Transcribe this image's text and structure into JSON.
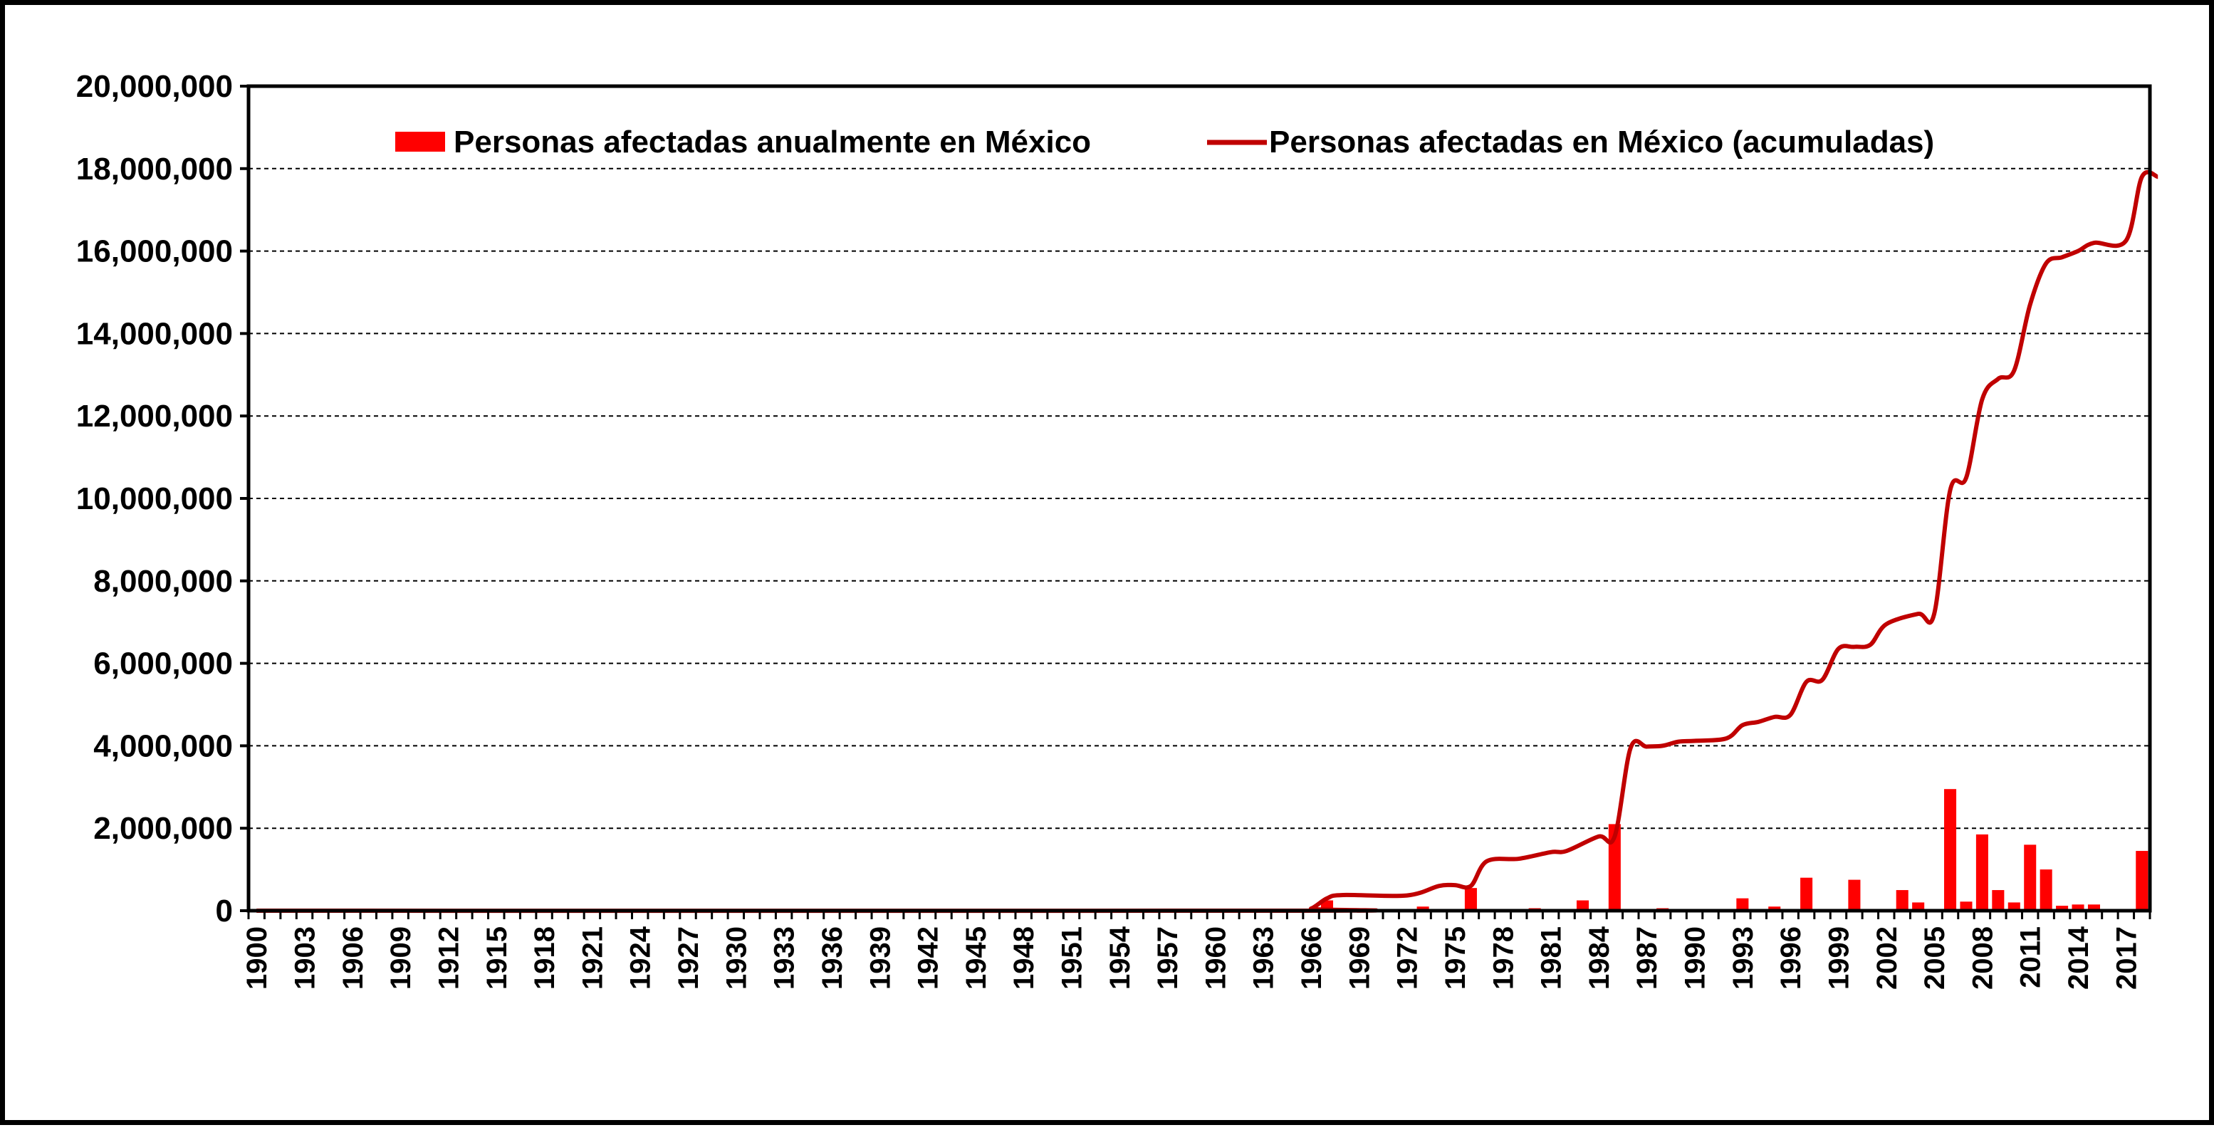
{
  "colors": {
    "bar": "#ff0000",
    "line": "#c00000",
    "grid": "#000000",
    "axis": "#000000"
  },
  "chart_data": {
    "type": "bar",
    "title": "",
    "xlabel": "",
    "ylabel": "",
    "x_start": 1900,
    "x_end": 2018,
    "x_tick_labels": [
      "1900",
      "1903",
      "1906",
      "1909",
      "1912",
      "1915",
      "1918",
      "1921",
      "1924",
      "1927",
      "1930",
      "1933",
      "1936",
      "1939",
      "1942",
      "1945",
      "1948",
      "1951",
      "1954",
      "1957",
      "1960",
      "1963",
      "1966",
      "1969",
      "1972",
      "1975",
      "1978",
      "1981",
      "1984",
      "1987",
      "1990",
      "1993",
      "1996",
      "1999",
      "2002",
      "2005",
      "2008",
      "2011",
      "2014",
      "2017"
    ],
    "ylim": [
      0,
      20000000
    ],
    "y_tick_labels": [
      "0",
      "2,000,000",
      "4,000,000",
      "6,000,000",
      "8,000,000",
      "10,000,000",
      "12,000,000",
      "14,000,000",
      "16,000,000",
      "18,000,000",
      "20,000,000"
    ],
    "y_ticks": [
      0,
      2000000,
      4000000,
      6000000,
      8000000,
      10000000,
      12000000,
      14000000,
      16000000,
      18000000,
      20000000
    ],
    "grid": "horizontal dashed",
    "legend_position": "top",
    "series": [
      {
        "name": "Personas afectadas anualmente en México",
        "type": "bar",
        "points": [
          {
            "year": 1966,
            "value": 50000
          },
          {
            "year": 1967,
            "value": 250000
          },
          {
            "year": 1973,
            "value": 100000
          },
          {
            "year": 1976,
            "value": 550000
          },
          {
            "year": 1980,
            "value": 60000
          },
          {
            "year": 1983,
            "value": 250000
          },
          {
            "year": 1985,
            "value": 2100000
          },
          {
            "year": 1988,
            "value": 60000
          },
          {
            "year": 1993,
            "value": 300000
          },
          {
            "year": 1995,
            "value": 100000
          },
          {
            "year": 1997,
            "value": 800000
          },
          {
            "year": 2000,
            "value": 750000
          },
          {
            "year": 2003,
            "value": 500000
          },
          {
            "year": 2004,
            "value": 200000
          },
          {
            "year": 2006,
            "value": 2950000
          },
          {
            "year": 2007,
            "value": 220000
          },
          {
            "year": 2008,
            "value": 1850000
          },
          {
            "year": 2009,
            "value": 500000
          },
          {
            "year": 2010,
            "value": 200000
          },
          {
            "year": 2011,
            "value": 1600000
          },
          {
            "year": 2012,
            "value": 1000000
          },
          {
            "year": 2013,
            "value": 120000
          },
          {
            "year": 2014,
            "value": 150000
          },
          {
            "year": 2015,
            "value": 150000
          },
          {
            "year": 2018,
            "value": 1450000
          }
        ]
      },
      {
        "name": "Personas afectadas en México (acumuladas)",
        "type": "line",
        "points": [
          {
            "year": 1900,
            "value": 0
          },
          {
            "year": 1965,
            "value": 0
          },
          {
            "year": 1966,
            "value": 50000
          },
          {
            "year": 1967,
            "value": 300000
          },
          {
            "year": 1968,
            "value": 380000
          },
          {
            "year": 1972,
            "value": 370000
          },
          {
            "year": 1974,
            "value": 600000
          },
          {
            "year": 1975,
            "value": 620000
          },
          {
            "year": 1976,
            "value": 600000
          },
          {
            "year": 1977,
            "value": 1200000
          },
          {
            "year": 1979,
            "value": 1260000
          },
          {
            "year": 1981,
            "value": 1420000
          },
          {
            "year": 1982,
            "value": 1450000
          },
          {
            "year": 1984,
            "value": 1800000
          },
          {
            "year": 1985,
            "value": 1800000
          },
          {
            "year": 1986,
            "value": 3950000
          },
          {
            "year": 1987,
            "value": 3980000
          },
          {
            "year": 1988,
            "value": 4000000
          },
          {
            "year": 1989,
            "value": 4100000
          },
          {
            "year": 1990,
            "value": 4120000
          },
          {
            "year": 1992,
            "value": 4180000
          },
          {
            "year": 1993,
            "value": 4500000
          },
          {
            "year": 1994,
            "value": 4580000
          },
          {
            "year": 1995,
            "value": 4700000
          },
          {
            "year": 1996,
            "value": 4750000
          },
          {
            "year": 1997,
            "value": 5550000
          },
          {
            "year": 1998,
            "value": 5600000
          },
          {
            "year": 1999,
            "value": 6350000
          },
          {
            "year": 2000,
            "value": 6400000
          },
          {
            "year": 2001,
            "value": 6450000
          },
          {
            "year": 2002,
            "value": 6950000
          },
          {
            "year": 2004,
            "value": 7200000
          },
          {
            "year": 2005,
            "value": 7200000
          },
          {
            "year": 2006,
            "value": 10200000
          },
          {
            "year": 2007,
            "value": 10500000
          },
          {
            "year": 2008,
            "value": 12400000
          },
          {
            "year": 2009,
            "value": 12900000
          },
          {
            "year": 2010,
            "value": 13100000
          },
          {
            "year": 2011,
            "value": 14700000
          },
          {
            "year": 2012,
            "value": 15700000
          },
          {
            "year": 2013,
            "value": 15850000
          },
          {
            "year": 2014,
            "value": 16000000
          },
          {
            "year": 2015,
            "value": 16200000
          },
          {
            "year": 2017,
            "value": 16250000
          },
          {
            "year": 2018,
            "value": 17800000
          },
          {
            "year": 2019,
            "value": 17800000
          }
        ]
      }
    ]
  }
}
